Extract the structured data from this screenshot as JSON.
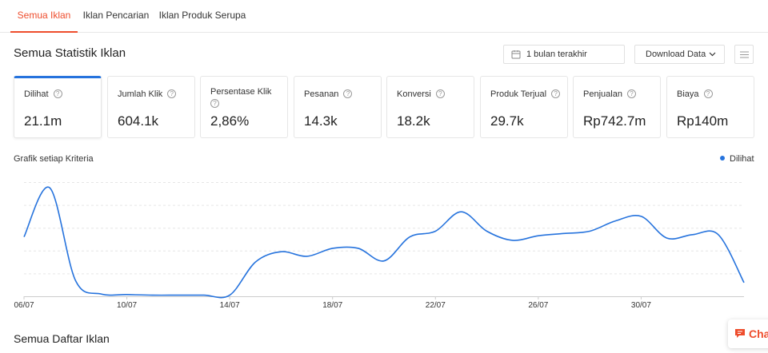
{
  "tabs": [
    {
      "label": "Semua Iklan",
      "active": true
    },
    {
      "label": "Iklan Pencarian",
      "active": false
    },
    {
      "label": "Iklan Produk Serupa",
      "active": false
    }
  ],
  "stats": {
    "title": "Semua Statistik Iklan",
    "date_range": "1 bulan terakhir",
    "download_label": "Download Data"
  },
  "metrics": [
    {
      "label": "Dilihat",
      "value": "21.1m",
      "active": true
    },
    {
      "label": "Jumlah Klik",
      "value": "604.1k"
    },
    {
      "label": "Persentase Klik",
      "value": "2,86%"
    },
    {
      "label": "Pesanan",
      "value": "14.3k"
    },
    {
      "label": "Konversi",
      "value": "18.2k"
    },
    {
      "label": "Produk Terjual",
      "value": "29.7k"
    },
    {
      "label": "Penjualan",
      "value": "Rp742.7m"
    },
    {
      "label": "Biaya",
      "value": "Rp140m"
    }
  ],
  "chart": {
    "title": "Grafik setiap Kriteria",
    "legend": "Dilihat",
    "color": "#2673dd"
  },
  "chart_data": {
    "type": "line",
    "x": [
      "06/07",
      "07/07",
      "08/07",
      "09/07",
      "10/07",
      "11/07",
      "12/07",
      "13/07",
      "14/07",
      "15/07",
      "16/07",
      "17/07",
      "18/07",
      "19/07",
      "20/07",
      "21/07",
      "22/07",
      "23/07",
      "24/07",
      "25/07",
      "26/07",
      "27/07",
      "28/07",
      "29/07",
      "30/07",
      "31/07",
      "01/08",
      "02/08",
      "03/08"
    ],
    "tick_labels": [
      "06/07",
      "10/07",
      "14/07",
      "18/07",
      "22/07",
      "26/07",
      "30/07"
    ],
    "series": [
      {
        "name": "Dilihat",
        "values": [
          0.52,
          0.95,
          0.14,
          0.02,
          0.015,
          0.01,
          0.01,
          0.01,
          0.01,
          0.3,
          0.39,
          0.35,
          0.42,
          0.42,
          0.31,
          0.52,
          0.57,
          0.74,
          0.57,
          0.49,
          0.53,
          0.55,
          0.57,
          0.66,
          0.7,
          0.51,
          0.54,
          0.54,
          0.12
        ]
      }
    ],
    "ylim": [
      0,
      1
    ],
    "grid": true
  },
  "list": {
    "title": "Semua Daftar Iklan"
  },
  "chat": {
    "label": "Chat"
  }
}
